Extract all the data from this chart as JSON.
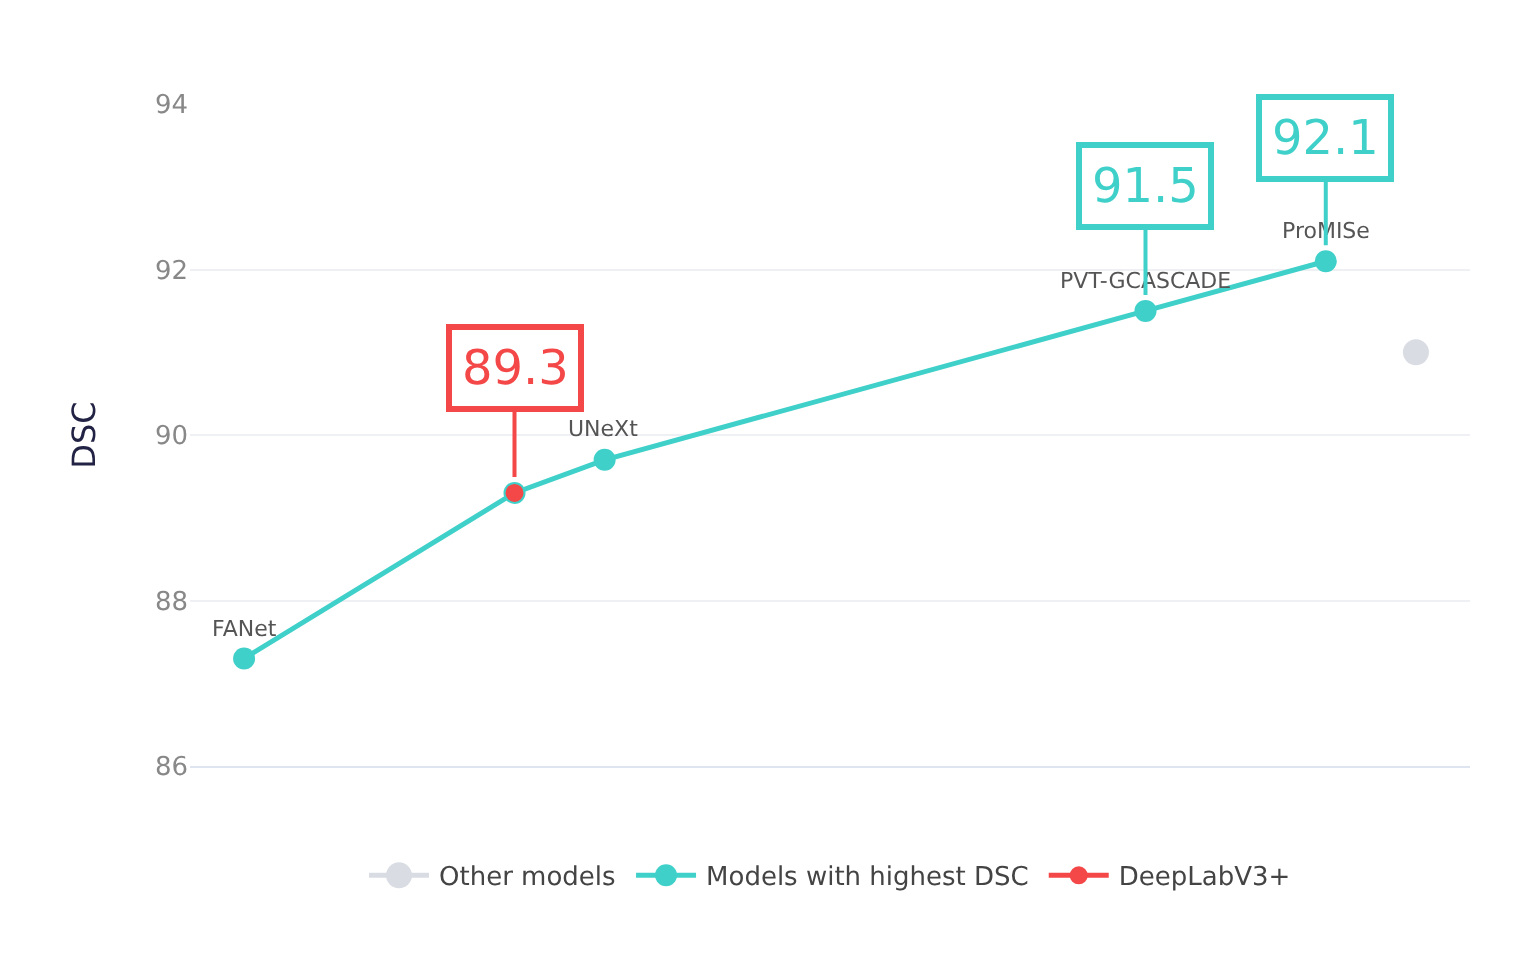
{
  "chart_data": {
    "type": "line",
    "ylabel": "DSC",
    "categories": [
      null,
      null,
      null,
      null,
      null,
      null,
      null,
      null,
      null,
      null,
      null,
      null,
      null,
      null
    ],
    "ylim": [
      86,
      94
    ],
    "yticks": [
      86,
      88,
      90,
      92,
      94
    ],
    "tick_labels": "y",
    "grid": "y",
    "legend": "bottom",
    "marker": "circle",
    "line_style": "solid",
    "series": [
      {
        "name": "Other models",
        "color": "#d9dde3",
        "values": [
          null,
          null,
          null,
          null,
          null,
          null,
          null,
          null,
          null,
          null,
          null,
          null,
          null,
          91.0
        ]
      },
      {
        "name": "Models with highest DSC",
        "color": "#3fd0c9",
        "values": [
          87.3,
          null,
          null,
          89.3,
          89.7,
          null,
          null,
          null,
          null,
          null,
          91.5,
          null,
          92.1,
          null
        ],
        "value_labels": [
          null,
          null,
          null,
          null,
          null,
          null,
          null,
          null,
          null,
          null,
          "91.5",
          null,
          "92.1",
          null
        ]
      },
      {
        "name": "DeepLabV3+",
        "color": "#f44747",
        "values": [
          null,
          null,
          null,
          89.3,
          null,
          null,
          null,
          null,
          null,
          null,
          null,
          null,
          null,
          null
        ],
        "value_labels": [
          null,
          null,
          null,
          "89.3",
          null,
          null,
          null,
          null,
          null,
          null,
          null,
          null,
          null,
          null
        ]
      }
    ],
    "annotations": [
      {
        "text": "FANet",
        "y": 87.3
      },
      {
        "text": "UNeXt",
        "y": 89.7
      },
      {
        "text": "PVT-GCASCADE",
        "y": 91.5
      },
      {
        "text": "ProMISe",
        "y": 92.1
      }
    ]
  }
}
